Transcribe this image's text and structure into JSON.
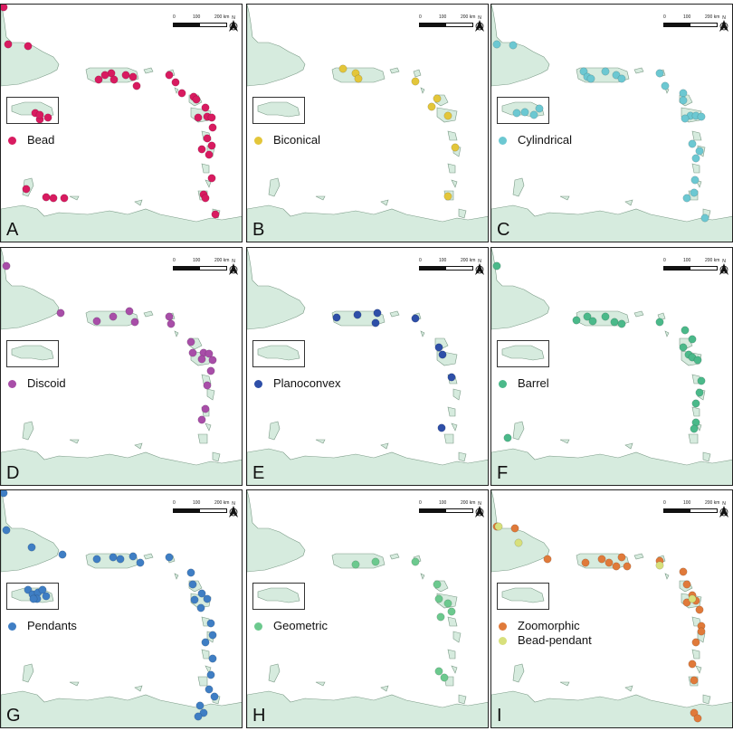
{
  "scale": {
    "l0": "0",
    "l1": "100",
    "l2": "200 km"
  },
  "panels": [
    {
      "letter": "A",
      "legend": [
        {
          "label": "Bead",
          "color": "#d81b60"
        }
      ],
      "dots": [
        [
          3,
          3
        ],
        [
          8,
          44
        ],
        [
          30,
          46
        ],
        [
          38,
          120
        ],
        [
          52,
          125
        ],
        [
          43,
          127
        ],
        [
          43,
          122
        ],
        [
          122,
          76
        ],
        [
          115,
          78
        ],
        [
          108,
          83
        ],
        [
          125,
          83
        ],
        [
          138,
          78
        ],
        [
          146,
          80
        ],
        [
          150,
          90
        ],
        [
          186,
          78
        ],
        [
          193,
          86
        ],
        [
          200,
          98
        ],
        [
          213,
          102
        ],
        [
          216,
          105
        ],
        [
          226,
          114
        ],
        [
          228,
          124
        ],
        [
          233,
          125
        ],
        [
          218,
          125
        ],
        [
          234,
          136
        ],
        [
          228,
          148
        ],
        [
          233,
          156
        ],
        [
          222,
          160
        ],
        [
          230,
          166
        ],
        [
          224,
          210
        ],
        [
          226,
          214
        ],
        [
          233,
          192
        ],
        [
          237,
          232
        ],
        [
          28,
          204
        ],
        [
          50,
          213
        ],
        [
          58,
          214
        ],
        [
          70,
          214
        ]
      ]
    },
    {
      "letter": "B",
      "legend": [
        {
          "label": "Biconical",
          "color": "#e3c63a"
        }
      ],
      "dots": [
        [
          106,
          71
        ],
        [
          120,
          76
        ],
        [
          123,
          82
        ],
        [
          186,
          85
        ],
        [
          210,
          104
        ],
        [
          204,
          113
        ],
        [
          222,
          123
        ],
        [
          230,
          158
        ],
        [
          222,
          212
        ]
      ]
    },
    {
      "letter": "C",
      "legend": [
        {
          "label": "Cylindrical",
          "color": "#6cc8d2"
        }
      ],
      "dots": [
        [
          6,
          44
        ],
        [
          24,
          45
        ],
        [
          28,
          120
        ],
        [
          37,
          119
        ],
        [
          47,
          122
        ],
        [
          53,
          115
        ],
        [
          102,
          74
        ],
        [
          106,
          80
        ],
        [
          110,
          82
        ],
        [
          126,
          74
        ],
        [
          138,
          78
        ],
        [
          144,
          82
        ],
        [
          186,
          76
        ],
        [
          192,
          90
        ],
        [
          212,
          98
        ],
        [
          212,
          106
        ],
        [
          220,
          123
        ],
        [
          226,
          123
        ],
        [
          232,
          124
        ],
        [
          214,
          126
        ],
        [
          222,
          154
        ],
        [
          230,
          162
        ],
        [
          226,
          170
        ],
        [
          225,
          194
        ],
        [
          224,
          208
        ],
        [
          216,
          214
        ],
        [
          236,
          236
        ]
      ]
    },
    {
      "letter": "D",
      "legend": [
        {
          "label": "Discoid",
          "color": "#a84ea8"
        }
      ],
      "dots": [
        [
          6,
          20
        ],
        [
          66,
          72
        ],
        [
          106,
          81
        ],
        [
          124,
          76
        ],
        [
          142,
          70
        ],
        [
          148,
          82
        ],
        [
          186,
          76
        ],
        [
          188,
          84
        ],
        [
          210,
          104
        ],
        [
          212,
          116
        ],
        [
          224,
          116
        ],
        [
          230,
          117
        ],
        [
          222,
          123
        ],
        [
          232,
          136
        ],
        [
          234,
          124
        ],
        [
          228,
          152
        ],
        [
          226,
          178
        ],
        [
          222,
          190
        ]
      ]
    },
    {
      "letter": "E",
      "legend": [
        {
          "label": "Planoconvex",
          "color": "#2e4fa8"
        }
      ],
      "dots": [
        [
          99,
          77
        ],
        [
          122,
          74
        ],
        [
          144,
          72
        ],
        [
          142,
          83
        ],
        [
          186,
          78
        ],
        [
          212,
          110
        ],
        [
          216,
          118
        ],
        [
          226,
          143
        ],
        [
          215,
          199
        ]
      ]
    },
    {
      "letter": "F",
      "legend": [
        {
          "label": "Barrel",
          "color": "#4bb98a"
        }
      ],
      "dots": [
        [
          6,
          20
        ],
        [
          94,
          80
        ],
        [
          106,
          76
        ],
        [
          112,
          81
        ],
        [
          126,
          76
        ],
        [
          136,
          82
        ],
        [
          144,
          84
        ],
        [
          186,
          82
        ],
        [
          214,
          91
        ],
        [
          222,
          101
        ],
        [
          212,
          110
        ],
        [
          218,
          118
        ],
        [
          222,
          121
        ],
        [
          228,
          124
        ],
        [
          232,
          147
        ],
        [
          230,
          160
        ],
        [
          226,
          172
        ],
        [
          226,
          193
        ],
        [
          224,
          200
        ],
        [
          18,
          210
        ]
      ]
    },
    {
      "letter": "G",
      "legend": [
        {
          "label": "Pendants",
          "color": "#3f7ec4"
        }
      ],
      "dots": [
        [
          3,
          3
        ],
        [
          6,
          44
        ],
        [
          34,
          63
        ],
        [
          68,
          71
        ],
        [
          106,
          76
        ],
        [
          124,
          74
        ],
        [
          132,
          76
        ],
        [
          146,
          73
        ],
        [
          154,
          80
        ],
        [
          186,
          74
        ],
        [
          210,
          91
        ],
        [
          212,
          104
        ],
        [
          222,
          114
        ],
        [
          228,
          120
        ],
        [
          214,
          121
        ],
        [
          221,
          130
        ],
        [
          232,
          147
        ],
        [
          234,
          160
        ],
        [
          226,
          168
        ],
        [
          234,
          186
        ],
        [
          232,
          204
        ],
        [
          230,
          220
        ],
        [
          236,
          228
        ],
        [
          220,
          238
        ],
        [
          224,
          246
        ],
        [
          218,
          250
        ],
        [
          30,
          110
        ],
        [
          35,
          115
        ],
        [
          41,
          113
        ],
        [
          46,
          110
        ],
        [
          50,
          117
        ],
        [
          40,
          120
        ],
        [
          36,
          120
        ]
      ]
    },
    {
      "letter": "H",
      "legend": [
        {
          "label": "Geometric",
          "color": "#6cc98e"
        }
      ],
      "dots": [
        [
          142,
          79
        ],
        [
          120,
          82
        ],
        [
          186,
          79
        ],
        [
          210,
          104
        ],
        [
          212,
          120
        ],
        [
          222,
          125
        ],
        [
          226,
          134
        ],
        [
          214,
          140
        ],
        [
          212,
          200
        ],
        [
          218,
          207
        ]
      ]
    },
    {
      "letter": "I",
      "legend": [
        {
          "label": "Zoomorphic",
          "color": "#e07a3a"
        },
        {
          "label": "Bead-pendant",
          "color": "#d8e07c"
        }
      ],
      "dots": [
        [
          6,
          40
        ],
        [
          26,
          42
        ],
        [
          62,
          76
        ],
        [
          104,
          80
        ],
        [
          122,
          76
        ],
        [
          130,
          80
        ],
        [
          138,
          84
        ],
        [
          144,
          74
        ],
        [
          150,
          84
        ],
        [
          186,
          78
        ],
        [
          212,
          90
        ],
        [
          216,
          104
        ],
        [
          222,
          116
        ],
        [
          216,
          124
        ],
        [
          226,
          122
        ],
        [
          230,
          132
        ],
        [
          232,
          150
        ],
        [
          232,
          156
        ],
        [
          226,
          168
        ],
        [
          222,
          192
        ],
        [
          224,
          210
        ],
        [
          224,
          246
        ],
        [
          228,
          252
        ],
        [
          8,
          40
        ],
        [
          30,
          58
        ],
        [
          186,
          83
        ],
        [
          222,
          120
        ]
      ]
    }
  ]
}
